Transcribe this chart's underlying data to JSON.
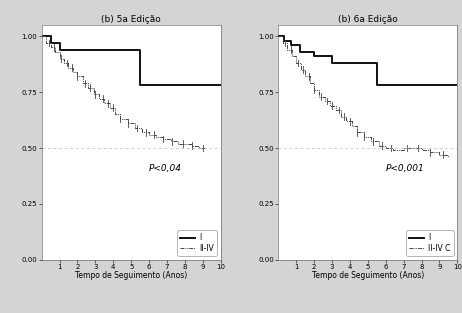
{
  "panel_b_title": "(b) 5a Edição",
  "panel_c_title": "(b) 6a Edição",
  "xlabel": "Tempo de Seguimento (Anos)",
  "xlim": [
    0,
    10
  ],
  "ylim": [
    0.0,
    1.05
  ],
  "yticks": [
    0.0,
    0.25,
    0.5,
    0.75,
    1.0
  ],
  "ytick_labels": [
    "0.00",
    "0.25",
    "0.50",
    "0.75",
    "1.00"
  ],
  "xticks": [
    1,
    2,
    3,
    4,
    5,
    6,
    7,
    8,
    9,
    10
  ],
  "pvalue_b": "P<0,04",
  "pvalue_c": "P<0,001",
  "legend_b": [
    "I",
    "II-IV"
  ],
  "legend_c": [
    "I",
    "II-IV C"
  ],
  "bg_color": "#d4d4d4",
  "plot_bg": "#ffffff",
  "line_color_I": "#111111",
  "line_color_IIIV": "#444444",
  "hline_color": "#aaaaaa",
  "title_fontsize": 6.5,
  "label_fontsize": 5.5,
  "tick_fontsize": 5,
  "pvalue_fontsize": 6.5,
  "legend_fontsize": 5.5,
  "panel_b_stage_I_x": [
    0,
    0.5,
    1.0,
    1.5,
    4.8,
    5.5,
    10
  ],
  "panel_b_stage_I_y": [
    1.0,
    0.97,
    0.94,
    0.94,
    0.94,
    0.78,
    0.78
  ],
  "panel_b_IIIV_x": [
    0,
    0.25,
    0.5,
    0.75,
    1.0,
    1.25,
    1.5,
    1.75,
    2.0,
    2.3,
    2.6,
    2.9,
    3.2,
    3.5,
    3.8,
    4.1,
    4.4,
    4.8,
    5.2,
    5.6,
    6.0,
    6.4,
    6.8,
    7.2,
    7.6,
    8.0,
    8.4,
    8.8,
    9.2
  ],
  "panel_b_IIIV_y": [
    1.0,
    0.97,
    0.95,
    0.93,
    0.9,
    0.88,
    0.86,
    0.84,
    0.82,
    0.79,
    0.77,
    0.74,
    0.72,
    0.7,
    0.68,
    0.65,
    0.63,
    0.61,
    0.59,
    0.57,
    0.56,
    0.55,
    0.54,
    0.53,
    0.52,
    0.52,
    0.51,
    0.5,
    0.5
  ],
  "panel_b_censor_x": [
    0.4,
    0.7,
    1.1,
    1.4,
    1.7,
    2.0,
    2.4,
    2.7,
    3.0,
    3.4,
    3.7,
    4.0,
    4.4,
    4.8,
    5.3,
    5.8,
    6.3,
    6.8,
    7.3,
    7.9,
    8.4,
    9.0
  ],
  "panel_c_stage_I_x": [
    0,
    0.3,
    0.7,
    1.2,
    2.0,
    3.0,
    4.8,
    5.5,
    10
  ],
  "panel_c_stage_I_y": [
    1.0,
    0.98,
    0.96,
    0.93,
    0.91,
    0.88,
    0.88,
    0.78,
    0.78
  ],
  "panel_c_IIIV_x": [
    0,
    0.25,
    0.5,
    0.75,
    1.0,
    1.25,
    1.5,
    1.75,
    2.0,
    2.3,
    2.6,
    2.9,
    3.2,
    3.5,
    3.8,
    4.1,
    4.4,
    4.8,
    5.2,
    5.6,
    6.0,
    6.4,
    7.0,
    7.5,
    8.0,
    8.5,
    9.0,
    9.5
  ],
  "panel_c_IIIV_y": [
    1.0,
    0.97,
    0.94,
    0.91,
    0.88,
    0.85,
    0.82,
    0.79,
    0.76,
    0.73,
    0.71,
    0.69,
    0.67,
    0.64,
    0.62,
    0.6,
    0.57,
    0.55,
    0.53,
    0.51,
    0.5,
    0.49,
    0.5,
    0.5,
    0.49,
    0.48,
    0.47,
    0.46
  ],
  "panel_c_censor_x": [
    0.4,
    0.7,
    1.1,
    1.4,
    1.7,
    2.0,
    2.4,
    2.7,
    3.0,
    3.4,
    3.7,
    4.0,
    4.4,
    4.8,
    5.3,
    5.8,
    6.3,
    7.2,
    7.8,
    8.5,
    9.2
  ]
}
